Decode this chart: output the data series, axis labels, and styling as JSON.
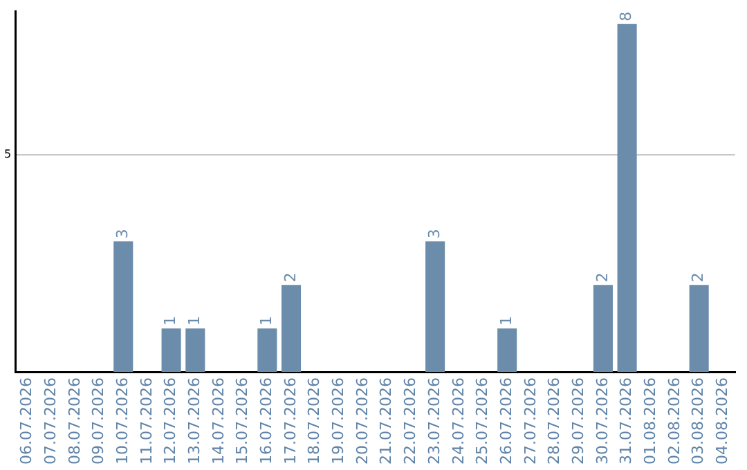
{
  "chart_data": {
    "type": "bar",
    "categories": [
      "06.07.2026",
      "07.07.2026",
      "08.07.2026",
      "09.07.2026",
      "10.07.2026",
      "11.07.2026",
      "12.07.2026",
      "13.07.2026",
      "14.07.2026",
      "15.07.2026",
      "16.07.2026",
      "17.07.2026",
      "18.07.2026",
      "19.07.2026",
      "20.07.2026",
      "21.07.2026",
      "22.07.2026",
      "23.07.2026",
      "24.07.2026",
      "25.07.2026",
      "26.07.2026",
      "27.07.2026",
      "28.07.2026",
      "29.07.2026",
      "30.07.2026",
      "31.07.2026",
      "01.08.2026",
      "02.08.2026",
      "03.08.2026",
      "04.08.2026"
    ],
    "values": [
      0,
      0,
      0,
      0,
      3,
      0,
      1,
      1,
      0,
      0,
      1,
      2,
      0,
      0,
      0,
      0,
      0,
      3,
      0,
      0,
      1,
      0,
      0,
      0,
      2,
      8,
      0,
      0,
      2,
      0
    ],
    "value_labels": [
      null,
      null,
      null,
      null,
      "3",
      null,
      "1",
      "1",
      null,
      null,
      "1",
      "2",
      null,
      null,
      null,
      null,
      null,
      "3",
      null,
      null,
      "1",
      null,
      null,
      null,
      "2",
      "8",
      null,
      null,
      "2",
      null
    ],
    "color": "#6b8cab",
    "ylim": [
      0,
      8.3
    ],
    "yticks": [
      5
    ],
    "grid": "y",
    "legend": false
  }
}
